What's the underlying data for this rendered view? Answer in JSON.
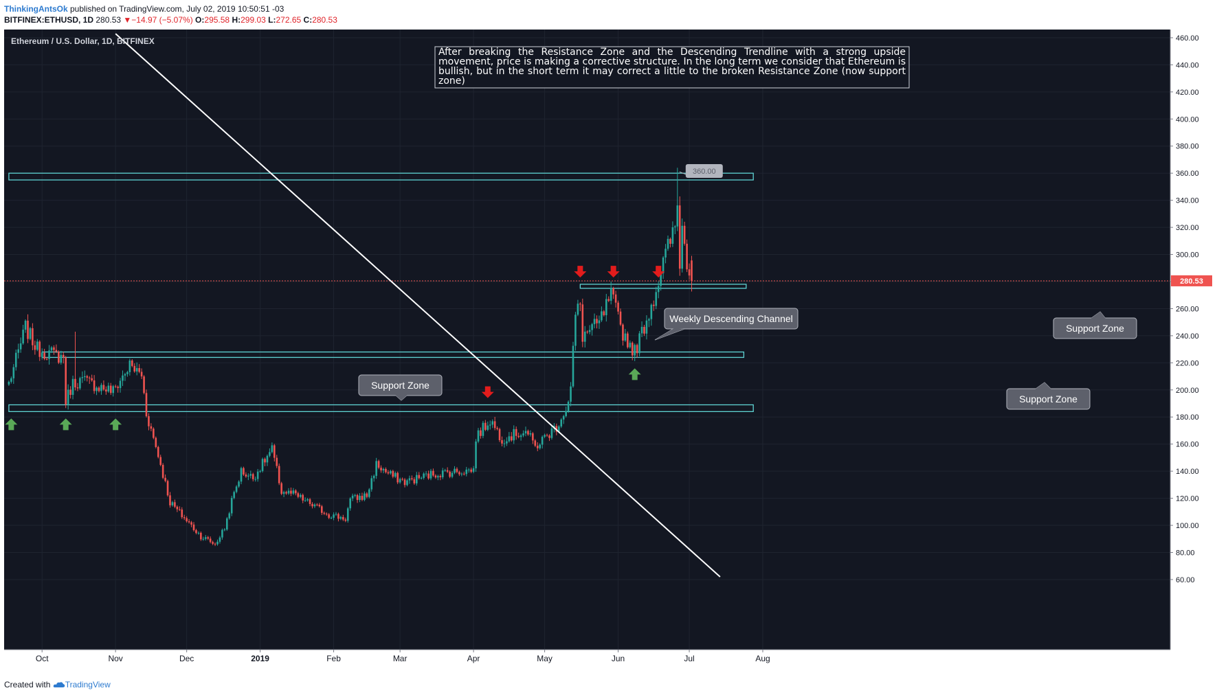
{
  "header": {
    "line1": {
      "user": "ThinkingAntsOk",
      "rest": " published on TradingView.com, July 02, 2019 10:50:51 -03"
    },
    "line2": {
      "symbol": "BITFINEX:ETHUSD, 1D",
      "price": "280.53",
      "change": "−14.97 (−5.07%)",
      "o_label": "O:",
      "o_value": "295.58",
      "h_label": "H:",
      "h_value": "299.03",
      "l_label": "L:",
      "l_value": "272.65",
      "c_label": "C:",
      "c_value": "280.53"
    }
  },
  "footer": {
    "prefix": "Created with ",
    "brand": "TradingView"
  },
  "colors": {
    "background": "#131722",
    "up": "#26a69a",
    "down": "#ef5350",
    "zone": "#5fd4d4",
    "trendline": "#ffffff",
    "up_arrow": "#5aa857",
    "down_arrow": "#e21c1c",
    "last_price_tag": "#ef5350"
  },
  "chart_data": {
    "type": "candlestick",
    "title": "Ethereum / U.S. Dollar, 1D, BITFINEX",
    "ylim": [
      60,
      465
    ],
    "y_ticks": [
      "460.00",
      "440.00",
      "420.00",
      "400.00",
      "380.00",
      "360.00",
      "340.00",
      "320.00",
      "300.00",
      "280.00",
      "260.00",
      "240.00",
      "220.00",
      "200.00",
      "180.00",
      "160.00",
      "140.00",
      "120.00",
      "100.00",
      "80.00",
      "60.00"
    ],
    "x_ticks": [
      "Oct",
      "Nov",
      "Dec",
      "2019",
      "Feb",
      "Mar",
      "Apr",
      "May",
      "Jun",
      "Jul",
      "Aug"
    ],
    "last_price": "280.53",
    "peak_label": "360.00",
    "note": "After breaking the Resistance Zone and the Descending Trendline with a strong upside movement, price is making a corrective structure. In the long term we consider that Ethereum is bullish, but in the short term it may correct a little to the broken Resistance Zone (now support zone)",
    "callouts": [
      "Weekly Descending Channel",
      "Support Zone",
      "Support Zone",
      "Support Zone"
    ],
    "zones": [
      {
        "from_date": "2018-09-17",
        "to_date": "2019-07-28",
        "low": 355,
        "high": 360
      },
      {
        "from_date": "2019-05-16",
        "to_date": "2019-07-25",
        "low": 275,
        "high": 278
      },
      {
        "from_date": "2018-10-01",
        "to_date": "2019-07-24",
        "low": 224,
        "high": 228
      },
      {
        "from_date": "2018-09-17",
        "to_date": "2019-07-28",
        "low": 184,
        "high": 189
      }
    ],
    "trendline": {
      "start": {
        "date": "2018-11-30",
        "price": 466
      },
      "end": {
        "date": "2019-07-14",
        "price": 62
      }
    },
    "price_line": 280.53,
    "up_arrows": [
      "2018-09-18",
      "2018-10-11",
      "2018-11-01",
      "2019-06-08"
    ],
    "down_arrows": [
      "2019-04-07",
      "2019-05-16",
      "2019-05-30",
      "2019-06-18"
    ],
    "anchors": [
      {
        "date": "2018-09-17",
        "price": 205
      },
      {
        "date": "2018-09-20",
        "price": 222
      },
      {
        "date": "2018-09-24",
        "price": 246
      },
      {
        "date": "2018-09-29",
        "price": 230
      },
      {
        "date": "2018-10-06",
        "price": 226
      },
      {
        "date": "2018-10-10",
        "price": 224
      },
      {
        "date": "2018-10-11",
        "price": 192
      },
      {
        "date": "2018-10-14",
        "price": 205
      },
      {
        "date": "2018-10-18",
        "price": 207
      },
      {
        "date": "2018-10-31",
        "price": 199
      },
      {
        "date": "2018-11-07",
        "price": 218
      },
      {
        "date": "2018-11-12",
        "price": 211
      },
      {
        "date": "2018-11-14",
        "price": 183
      },
      {
        "date": "2018-11-19",
        "price": 152
      },
      {
        "date": "2018-11-24",
        "price": 117
      },
      {
        "date": "2018-12-07",
        "price": 92
      },
      {
        "date": "2018-12-13",
        "price": 86
      },
      {
        "date": "2018-12-17",
        "price": 98
      },
      {
        "date": "2018-12-20",
        "price": 118
      },
      {
        "date": "2018-12-24",
        "price": 140
      },
      {
        "date": "2018-12-29",
        "price": 135
      },
      {
        "date": "2019-01-06",
        "price": 156
      },
      {
        "date": "2019-01-10",
        "price": 125
      },
      {
        "date": "2019-01-15",
        "price": 123
      },
      {
        "date": "2019-01-30",
        "price": 108
      },
      {
        "date": "2019-02-06",
        "price": 105
      },
      {
        "date": "2019-02-08",
        "price": 119
      },
      {
        "date": "2019-02-15",
        "price": 122
      },
      {
        "date": "2019-02-19",
        "price": 145
      },
      {
        "date": "2019-02-24",
        "price": 138
      },
      {
        "date": "2019-03-03",
        "price": 132
      },
      {
        "date": "2019-03-15",
        "price": 138
      },
      {
        "date": "2019-04-01",
        "price": 141
      },
      {
        "date": "2019-04-02",
        "price": 165
      },
      {
        "date": "2019-04-08",
        "price": 178
      },
      {
        "date": "2019-04-13",
        "price": 164
      },
      {
        "date": "2019-04-23",
        "price": 170
      },
      {
        "date": "2019-04-27",
        "price": 158
      },
      {
        "date": "2019-05-06",
        "price": 173
      },
      {
        "date": "2019-05-11",
        "price": 190
      },
      {
        "date": "2019-05-12",
        "price": 202
      },
      {
        "date": "2019-05-14",
        "price": 255
      },
      {
        "date": "2019-05-16",
        "price": 263
      },
      {
        "date": "2019-05-17",
        "price": 240
      },
      {
        "date": "2019-05-24",
        "price": 249
      },
      {
        "date": "2019-05-29",
        "price": 270
      },
      {
        "date": "2019-06-03",
        "price": 242
      },
      {
        "date": "2019-06-08",
        "price": 228
      },
      {
        "date": "2019-06-13",
        "price": 252
      },
      {
        "date": "2019-06-16",
        "price": 268
      },
      {
        "date": "2019-06-21",
        "price": 300
      },
      {
        "date": "2019-06-25",
        "price": 320
      },
      {
        "date": "2019-06-26",
        "price": 336
      },
      {
        "date": "2019-06-27",
        "price": 295
      },
      {
        "date": "2019-06-28",
        "price": 320
      },
      {
        "date": "2019-06-30",
        "price": 295
      },
      {
        "date": "2019-07-02",
        "price": 280.53
      }
    ]
  }
}
